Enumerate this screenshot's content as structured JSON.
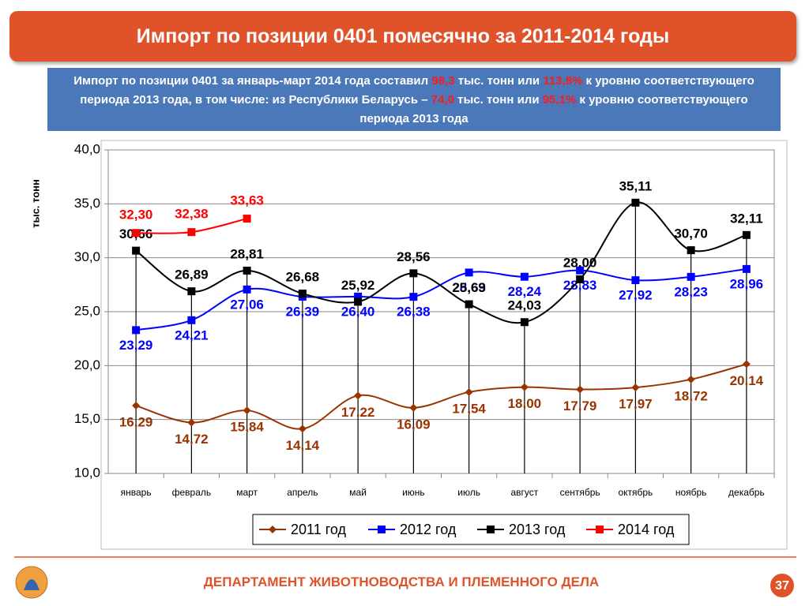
{
  "slide": {
    "title": "Импорт по позиции 0401 помесячно за 2011-2014 годы",
    "subtitle_parts": [
      "Импорт по позиции 0401 за январь-март 2014 года составил ",
      "98,3",
      " тыс. тонн или ",
      "113,8%",
      " к уровню соответствующего периода 2013 года, в том числе: из Республики Беларусь – ",
      "74,0",
      " тыс. тонн или ",
      "95,1%",
      " к уровню соответствующего периода 2013 года"
    ],
    "footer": "ДЕПАРТАМЕНТ ЖИВОТНОВОДСТВА И ПЛЕМЕННОГО ДЕЛА",
    "page_number": 37
  },
  "chart_data": {
    "type": "line",
    "y_label": "тыс. тонн",
    "categories": [
      "январь",
      "февраль",
      "март",
      "апрель",
      "май",
      "июнь",
      "июль",
      "август",
      "сентябрь",
      "октябрь",
      "ноябрь",
      "декабрь"
    ],
    "ylim": [
      10,
      40
    ],
    "yticks": [
      {
        "value": 10,
        "label": "10,0"
      },
      {
        "value": 15,
        "label": "15,0"
      },
      {
        "value": 20,
        "label": "20,0"
      },
      {
        "value": 25,
        "label": "25,0"
      },
      {
        "value": 30,
        "label": "30,0"
      },
      {
        "value": 35,
        "label": "35,0"
      },
      {
        "value": 40,
        "label": "40,0"
      }
    ],
    "grid": true,
    "legend": "bottom",
    "series": [
      {
        "name": "2011 год",
        "color": "#993300",
        "marker": "diamond",
        "values": [
          16.29,
          14.72,
          15.84,
          14.14,
          17.22,
          16.09,
          17.54,
          18.0,
          17.79,
          17.97,
          18.72,
          20.14
        ],
        "value_labels": [
          "16,29",
          "14,72",
          "15,84",
          "14,14",
          "17,22",
          "16,09",
          "17,54",
          "18,00",
          "17,79",
          "17,97",
          "18,72",
          "20,14"
        ]
      },
      {
        "name": "2012 год",
        "color": "#0000ff",
        "marker": "square",
        "values": [
          23.29,
          24.21,
          27.06,
          26.39,
          26.4,
          26.38,
          28.63,
          28.24,
          28.83,
          27.92,
          28.23,
          28.96
        ],
        "value_labels": [
          "23,29",
          "24,21",
          "27,06",
          "26,39",
          "26,40",
          "26,38",
          "28,63",
          "28,24",
          "28,83",
          "27,92",
          "28,23",
          "28,96"
        ]
      },
      {
        "name": "2013 год",
        "color": "#000000",
        "marker": "square",
        "values": [
          30.66,
          26.89,
          28.81,
          26.68,
          25.92,
          28.56,
          25.69,
          24.03,
          28.0,
          35.11,
          30.7,
          32.11
        ],
        "value_labels": [
          "30,66",
          "26,89",
          "28,81",
          "26,68",
          "25,92",
          "28,56",
          "25,69",
          "24,03",
          "28,00",
          "35,11",
          "30,70",
          "32,11"
        ]
      },
      {
        "name": "2014 год",
        "color": "#ff0000",
        "marker": "square",
        "values": [
          32.3,
          32.38,
          33.63,
          null,
          null,
          null,
          null,
          null,
          null,
          null,
          null,
          null
        ],
        "value_labels": [
          "32,30",
          "32,38",
          "33,63",
          null,
          null,
          null,
          null,
          null,
          null,
          null,
          null,
          null
        ]
      }
    ]
  }
}
